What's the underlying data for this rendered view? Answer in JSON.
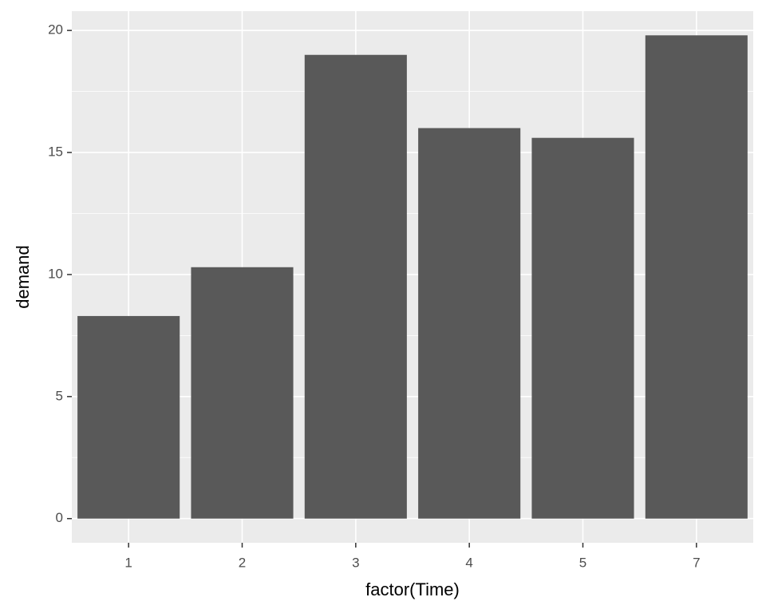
{
  "chart_data": {
    "type": "bar",
    "x_label": "factor(Time)",
    "y_label": "demand",
    "categories": [
      "1",
      "2",
      "3",
      "4",
      "5",
      "7"
    ],
    "values": [
      8.3,
      10.3,
      19,
      16,
      15.6,
      19.8
    ],
    "color": "#595959",
    "ylim": [
      -0.99,
      20.79
    ],
    "yticks": [
      0,
      5,
      10,
      15,
      20
    ],
    "grid": true
  }
}
